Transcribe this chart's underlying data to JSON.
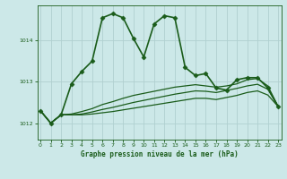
{
  "title": "Graphe pression niveau de la mer (hPa)",
  "background_color": "#cce8e8",
  "grid_color": "#b0d0d0",
  "line_color": "#1a5c1a",
  "x_ticks": [
    0,
    1,
    2,
    3,
    4,
    5,
    6,
    7,
    8,
    9,
    10,
    11,
    12,
    13,
    14,
    15,
    16,
    17,
    18,
    19,
    20,
    21,
    22,
    23
  ],
  "y_ticks": [
    1012,
    1013,
    1014
  ],
  "ylim": [
    1011.6,
    1014.85
  ],
  "xlim": [
    -0.3,
    23.3
  ],
  "series": [
    {
      "x": [
        0,
        1,
        2,
        3,
        4,
        5,
        6,
        7,
        8,
        9,
        10,
        11,
        12,
        13,
        14,
        15,
        16,
        17,
        18,
        19,
        20,
        21,
        22,
        23
      ],
      "y": [
        1012.3,
        1012.0,
        1012.2,
        1012.95,
        1013.25,
        1013.5,
        1014.55,
        1014.65,
        1014.55,
        1014.05,
        1013.6,
        1014.4,
        1014.6,
        1014.55,
        1013.35,
        1013.15,
        1013.2,
        1012.85,
        1012.8,
        1013.05,
        1013.1,
        1013.1,
        1012.85,
        1012.4
      ],
      "marker": "D",
      "markersize": 2.5,
      "linewidth": 1.2
    },
    {
      "x": [
        0,
        1,
        2,
        3,
        4,
        5,
        6,
        7,
        8,
        9,
        10,
        11,
        12,
        13,
        14,
        15,
        16,
        17,
        18,
        19,
        20,
        21,
        22,
        23
      ],
      "y": [
        1012.3,
        1012.0,
        1012.2,
        1012.22,
        1012.28,
        1012.35,
        1012.45,
        1012.52,
        1012.6,
        1012.67,
        1012.72,
        1012.77,
        1012.82,
        1012.87,
        1012.9,
        1012.93,
        1012.9,
        1012.87,
        1012.9,
        1012.95,
        1013.05,
        1013.08,
        1012.9,
        1012.4
      ],
      "marker": null,
      "linewidth": 0.9
    },
    {
      "x": [
        0,
        1,
        2,
        3,
        4,
        5,
        6,
        7,
        8,
        9,
        10,
        11,
        12,
        13,
        14,
        15,
        16,
        17,
        18,
        19,
        20,
        21,
        22,
        23
      ],
      "y": [
        1012.3,
        1012.0,
        1012.2,
        1012.2,
        1012.22,
        1012.27,
        1012.33,
        1012.38,
        1012.44,
        1012.5,
        1012.55,
        1012.6,
        1012.65,
        1012.7,
        1012.74,
        1012.78,
        1012.77,
        1012.74,
        1012.79,
        1012.84,
        1012.9,
        1012.94,
        1012.82,
        1012.4
      ],
      "marker": null,
      "linewidth": 0.9
    },
    {
      "x": [
        0,
        1,
        2,
        3,
        4,
        5,
        6,
        7,
        8,
        9,
        10,
        11,
        12,
        13,
        14,
        15,
        16,
        17,
        18,
        19,
        20,
        21,
        22,
        23
      ],
      "y": [
        1012.3,
        1012.0,
        1012.2,
        1012.2,
        1012.2,
        1012.22,
        1012.25,
        1012.28,
        1012.32,
        1012.36,
        1012.4,
        1012.44,
        1012.48,
        1012.52,
        1012.56,
        1012.6,
        1012.6,
        1012.57,
        1012.62,
        1012.67,
        1012.74,
        1012.78,
        1012.68,
        1012.4
      ],
      "marker": null,
      "linewidth": 0.9
    }
  ]
}
